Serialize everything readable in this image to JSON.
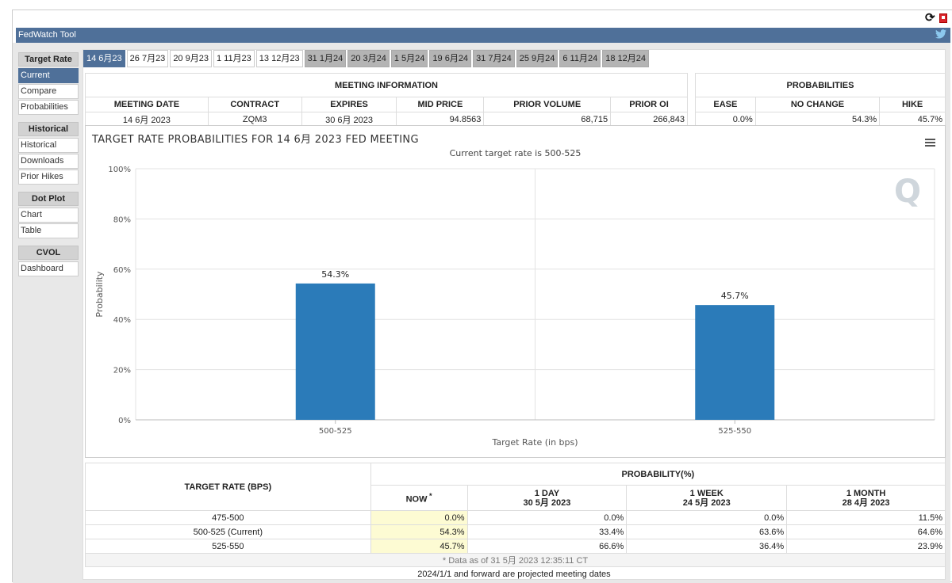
{
  "app": {
    "title": "FedWatch Tool"
  },
  "sidebar": {
    "sections": [
      {
        "header": "Target Rate",
        "items": [
          "Current",
          "Compare",
          "Probabilities"
        ]
      },
      {
        "header": "Historical",
        "items": [
          "Historical",
          "Downloads",
          "Prior Hikes"
        ]
      },
      {
        "header": "Dot Plot",
        "items": [
          "Chart",
          "Table"
        ]
      },
      {
        "header": "CVOL",
        "items": [
          "Dashboard"
        ]
      }
    ],
    "active_item": "Current"
  },
  "tabs": [
    {
      "label": "14 6月23",
      "state": "active"
    },
    {
      "label": "26 7月23",
      "state": "normal"
    },
    {
      "label": "20 9月23",
      "state": "normal"
    },
    {
      "label": "1 11月23",
      "state": "normal"
    },
    {
      "label": "13 12月23",
      "state": "normal"
    },
    {
      "label": "31 1月24",
      "state": "future"
    },
    {
      "label": "20 3月24",
      "state": "future"
    },
    {
      "label": "1 5月24",
      "state": "future"
    },
    {
      "label": "19 6月24",
      "state": "future"
    },
    {
      "label": "31 7月24",
      "state": "future"
    },
    {
      "label": "25 9月24",
      "state": "future"
    },
    {
      "label": "6 11月24",
      "state": "future"
    },
    {
      "label": "18 12月24",
      "state": "future"
    }
  ],
  "meeting_info": {
    "title": "MEETING INFORMATION",
    "columns": [
      "MEETING DATE",
      "CONTRACT",
      "EXPIRES",
      "MID PRICE",
      "PRIOR VOLUME",
      "PRIOR OI"
    ],
    "values": [
      "14 6月 2023",
      "ZQM3",
      "30 6月 2023",
      "94.8563",
      "68,715",
      "266,843"
    ]
  },
  "probabilities": {
    "title": "PROBABILITIES",
    "columns": [
      "EASE",
      "NO CHANGE",
      "HIKE"
    ],
    "values": [
      "0.0%",
      "54.3%",
      "45.7%"
    ]
  },
  "chart_data": {
    "type": "bar",
    "title": "TARGET RATE PROBABILITIES FOR 14 6月 2023 FED MEETING",
    "subtitle": "Current target rate is 500-525",
    "xlabel": "Target Rate (in bps)",
    "ylabel": "Probability",
    "categories": [
      "500-525",
      "525-550"
    ],
    "values": [
      54.3,
      45.7
    ],
    "data_labels": [
      "54.3%",
      "45.7%"
    ],
    "yticks": [
      "0%",
      "20%",
      "40%",
      "60%",
      "80%",
      "100%"
    ],
    "ylim": [
      0,
      100
    ],
    "bar_color": "#2b7bb9",
    "grid": true,
    "legend": "none"
  },
  "prob_table": {
    "rate_header": "TARGET RATE (BPS)",
    "prob_header": "PROBABILITY(%)",
    "columns": [
      {
        "line1": "NOW",
        "line2": ""
      },
      {
        "line1": "1 DAY",
        "line2": "30 5月 2023"
      },
      {
        "line1": "1 WEEK",
        "line2": "24 5月 2023"
      },
      {
        "line1": "1 MONTH",
        "line2": "28 4月 2023"
      }
    ],
    "rows": [
      {
        "rate": "475-500",
        "values": [
          "0.0%",
          "0.0%",
          "0.0%",
          "11.5%"
        ]
      },
      {
        "rate": "500-525 (Current)",
        "values": [
          "54.3%",
          "33.4%",
          "63.6%",
          "64.6%"
        ]
      },
      {
        "rate": "525-550",
        "values": [
          "45.7%",
          "66.6%",
          "36.4%",
          "23.9%"
        ]
      }
    ],
    "footnote": "* Data as of 31 5月 2023 12:35:11 CT"
  },
  "note": "2024/1/1 and forward are projected meeting dates",
  "colors": {
    "accent": "#4f7099",
    "future_tab": "#b4b4b4",
    "now_highlight": "#fdfbd3"
  }
}
